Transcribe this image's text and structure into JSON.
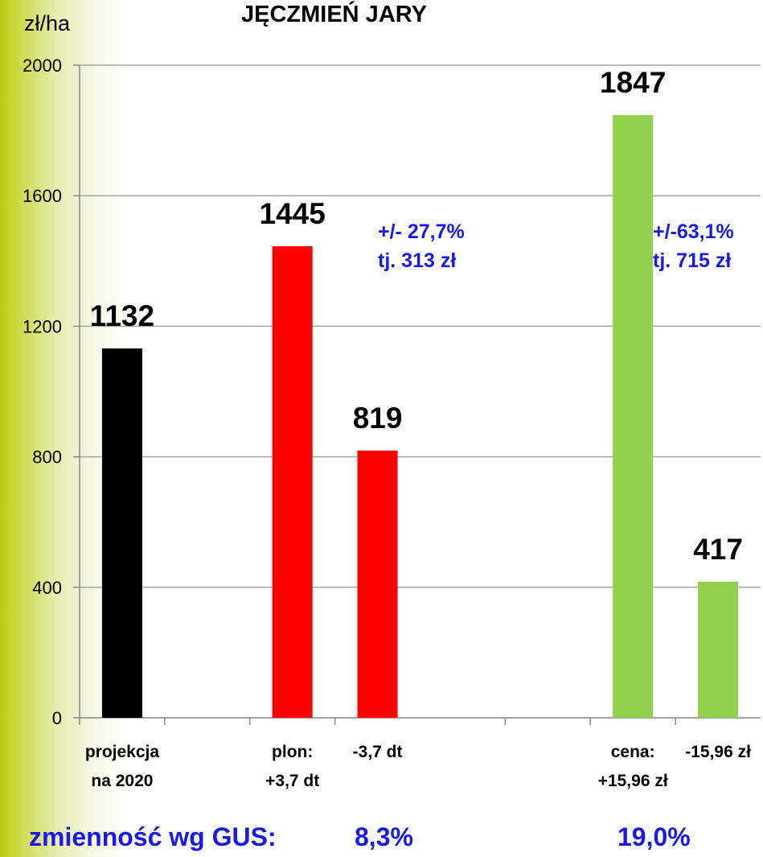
{
  "chart_data": {
    "type": "bar",
    "title": "JĘCZMIEŃ JARY",
    "ylabel": "zł/ha",
    "ylim": [
      0,
      2000
    ],
    "yticks": [
      0,
      400,
      800,
      1200,
      1600,
      2000
    ],
    "categories": [
      [
        "projekcja",
        "na 2020"
      ],
      [
        "plon:",
        "+3,7 dt"
      ],
      [
        "-3,7 dt"
      ],
      [
        "",
        ""
      ],
      [
        "cena:",
        "+15,96 zł"
      ],
      [
        "-15,96 zł"
      ]
    ],
    "bars": [
      {
        "slot": 0,
        "value": 1132,
        "label": "1132",
        "color": "#000000"
      },
      {
        "slot": 2,
        "value": 1445,
        "label": "1445",
        "color": "#ff0000"
      },
      {
        "slot": 3,
        "value": 819,
        "label": "819",
        "color": "#ff0000"
      },
      {
        "slot": 6,
        "value": 1847,
        "label": "1847",
        "color": "#92d050"
      },
      {
        "slot": 7,
        "value": 417,
        "label": "417",
        "color": "#92d050"
      }
    ],
    "annotations": [
      {
        "lines": [
          "+/- 27,7%",
          "tj. 313 zł"
        ]
      },
      {
        "lines": [
          "+/-63,1%",
          "tj. 715 zł"
        ]
      }
    ],
    "grid": true
  },
  "footer": {
    "label": "zmienność wg GUS:",
    "values": [
      "8,3%",
      "19,0%"
    ]
  },
  "colors": {
    "side_band": "#b5c910",
    "annotation_text": "#1a1ae6",
    "grid": "#a6a6a6"
  }
}
